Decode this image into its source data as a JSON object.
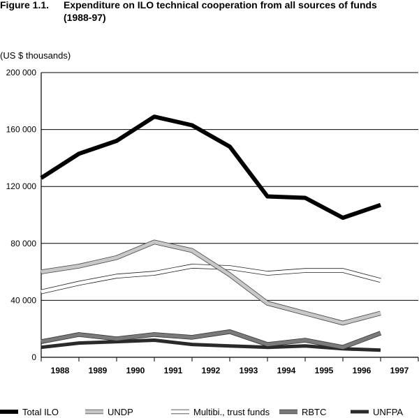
{
  "figure": {
    "number": "Figure 1.1.",
    "title_line1": "Expenditure on ILO technical cooperation from all sources of funds",
    "title_line2": "(1988-97)"
  },
  "chart_data": {
    "type": "line",
    "title": "Expenditure on ILO technical cooperation from all sources of funds (1988-97)",
    "ylabel": "(US $ thousands)",
    "xlabel": "",
    "ylim": [
      0,
      200000
    ],
    "y_ticks": [
      0,
      40000,
      80000,
      120000,
      160000,
      200000
    ],
    "y_tick_labels": [
      "0",
      "40 000",
      "80 000",
      "120 000",
      "160 000",
      "200 000"
    ],
    "categories": [
      "1988",
      "1989",
      "1990",
      "1991",
      "1992",
      "1993",
      "1994",
      "1995",
      "1996",
      "1997"
    ],
    "grid": "horizontal",
    "legend_position": "bottom",
    "series": [
      {
        "name": "Total ILO",
        "color": "#000000",
        "style": "heavy-black",
        "points": [
          [
            1987.5,
            126000
          ],
          [
            1988.5,
            143000
          ],
          [
            1989.5,
            152000
          ],
          [
            1990.5,
            169000
          ],
          [
            1991.5,
            163000
          ],
          [
            1992.5,
            148000
          ],
          [
            1993.5,
            113000
          ],
          [
            1994.5,
            112000
          ],
          [
            1995.5,
            98000
          ],
          [
            1996.5,
            107000
          ]
        ]
      },
      {
        "name": "UNDP",
        "color": "#c8c8c8",
        "style": "light-grey-outlined",
        "points": [
          [
            1987.5,
            60000
          ],
          [
            1988.5,
            64000
          ],
          [
            1989.5,
            70000
          ],
          [
            1990.5,
            81000
          ],
          [
            1991.5,
            75000
          ],
          [
            1992.5,
            58000
          ],
          [
            1993.5,
            38000
          ],
          [
            1994.5,
            31000
          ],
          [
            1995.5,
            24000
          ],
          [
            1996.5,
            31000
          ]
        ]
      },
      {
        "name": "Multibi., trust funds",
        "color": "#ffffff",
        "style": "white-outlined",
        "points": [
          [
            1987.5,
            46000
          ],
          [
            1988.5,
            52000
          ],
          [
            1989.5,
            57000
          ],
          [
            1990.5,
            59000
          ],
          [
            1991.5,
            64000
          ],
          [
            1992.5,
            63000
          ],
          [
            1993.5,
            59000
          ],
          [
            1994.5,
            61000
          ],
          [
            1995.5,
            61000
          ],
          [
            1996.5,
            54000
          ]
        ]
      },
      {
        "name": "RBTC",
        "color": "#7a7a7a",
        "style": "dark-grey",
        "points": [
          [
            1987.5,
            11000
          ],
          [
            1988.5,
            16000
          ],
          [
            1989.5,
            13000
          ],
          [
            1990.5,
            16000
          ],
          [
            1991.5,
            14000
          ],
          [
            1992.5,
            18000
          ],
          [
            1993.5,
            9000
          ],
          [
            1994.5,
            12000
          ],
          [
            1995.5,
            7000
          ],
          [
            1996.5,
            17000
          ]
        ]
      },
      {
        "name": "UNFPA",
        "color": "#2a2a2a",
        "style": "near-black",
        "points": [
          [
            1987.5,
            7000
          ],
          [
            1988.5,
            10000
          ],
          [
            1989.5,
            11000
          ],
          [
            1990.5,
            12000
          ],
          [
            1991.5,
            9000
          ],
          [
            1992.5,
            8000
          ],
          [
            1993.5,
            7000
          ],
          [
            1994.5,
            8000
          ],
          [
            1995.5,
            6000
          ],
          [
            1996.5,
            5000
          ]
        ]
      }
    ]
  }
}
